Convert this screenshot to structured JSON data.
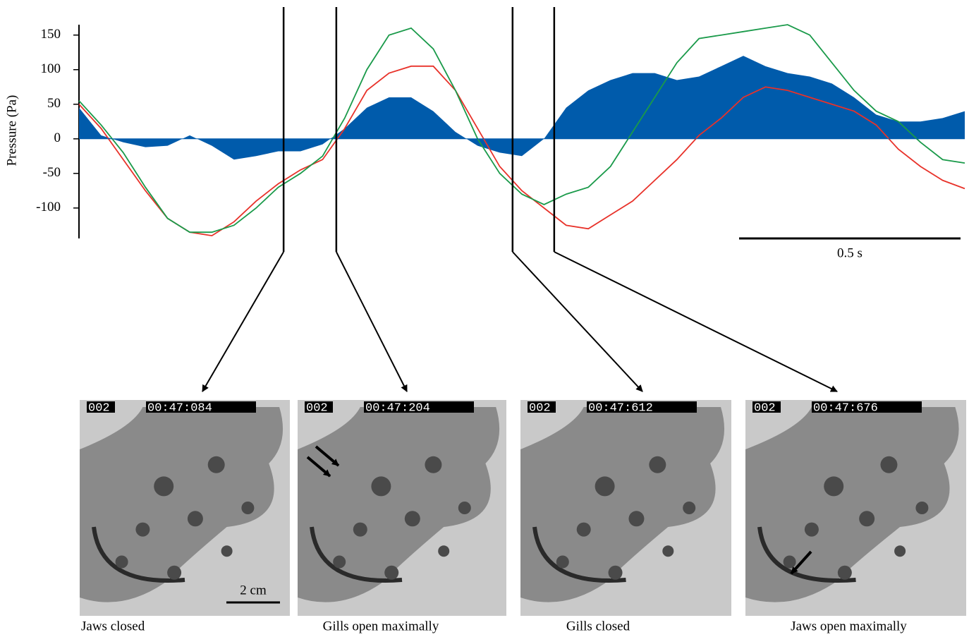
{
  "chart_data": {
    "type": "line",
    "y_label": "Pressure (Pa)",
    "xlim": [
      0,
      2.0
    ],
    "ylim": [
      -144,
      165
    ],
    "yticks": [
      -100,
      -50,
      0,
      50,
      100,
      150
    ],
    "x": [
      0,
      0.05,
      0.1,
      0.15,
      0.2,
      0.25,
      0.3,
      0.35,
      0.4,
      0.45,
      0.5,
      0.55,
      0.6,
      0.65,
      0.7,
      0.75,
      0.8,
      0.85,
      0.9,
      0.95,
      1.0,
      1.05,
      1.1,
      1.15,
      1.2,
      1.25,
      1.3,
      1.35,
      1.4,
      1.45,
      1.5,
      1.55,
      1.6,
      1.65,
      1.7,
      1.75,
      1.8,
      1.85,
      1.9,
      1.95,
      2.0
    ],
    "series": [
      {
        "color": "#005bab",
        "fill": true,
        "values": [
          45,
          5,
          -5,
          -12,
          -10,
          5,
          -10,
          -30,
          -25,
          -18,
          -18,
          -8,
          15,
          45,
          60,
          60,
          40,
          10,
          -10,
          -20,
          -25,
          0,
          45,
          70,
          85,
          95,
          95,
          85,
          90,
          105,
          120,
          105,
          95,
          90,
          80,
          60,
          35,
          25,
          25,
          30,
          40
        ]
      },
      {
        "color": "#e8322a",
        "fill": false,
        "values": [
          50,
          15,
          -30,
          -75,
          -115,
          -135,
          -140,
          -120,
          -90,
          -65,
          -45,
          -30,
          15,
          70,
          95,
          105,
          105,
          70,
          15,
          -40,
          -75,
          -100,
          -125,
          -130,
          -110,
          -90,
          -60,
          -30,
          5,
          30,
          60,
          75,
          70,
          60,
          50,
          40,
          20,
          -15,
          -40,
          -60,
          -72
        ]
      },
      {
        "color": "#1a9a4a",
        "fill": false,
        "values": [
          55,
          20,
          -20,
          -70,
          -115,
          -135,
          -135,
          -125,
          -100,
          -70,
          -50,
          -25,
          30,
          100,
          150,
          160,
          130,
          70,
          0,
          -50,
          -80,
          -95,
          -80,
          -70,
          -40,
          10,
          60,
          110,
          145,
          150,
          155,
          160,
          165,
          150,
          110,
          70,
          40,
          25,
          -5,
          -30,
          -35
        ]
      }
    ],
    "markers": [
      0.462,
      0.581,
      0.979,
      1.073
    ],
    "scale_bar": {
      "length": 0.5,
      "label": "0.5 s"
    }
  },
  "panels": [
    {
      "channel": "002",
      "timecode": "00:47:084",
      "caption": "Jaws closed",
      "scale_label": "2 cm"
    },
    {
      "channel": "002",
      "timecode": "00:47:204",
      "caption": "Gills open maximally"
    },
    {
      "channel": "002",
      "timecode": "00:47:612",
      "caption": "Gills closed"
    },
    {
      "channel": "002",
      "timecode": "00:47:676",
      "caption": "Jaws open maximally"
    }
  ]
}
